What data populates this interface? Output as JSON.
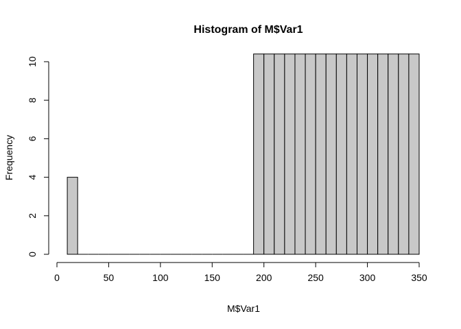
{
  "chart_data": {
    "type": "bar",
    "title": "Histogram of M$Var1",
    "xlabel": "M$Var1",
    "ylabel": "Frequency",
    "bar_fill": "#c8c8c8",
    "bar_stroke": "#000000",
    "xlim": [
      0,
      350
    ],
    "ylim": [
      0,
      10
    ],
    "xticks": [
      0,
      50,
      100,
      150,
      200,
      250,
      300,
      350
    ],
    "yticks": [
      0,
      2,
      4,
      6,
      8,
      10
    ],
    "bins": [
      {
        "start": 10,
        "end": 20,
        "count": 4
      },
      {
        "start": 20,
        "end": 30,
        "count": 0
      },
      {
        "start": 30,
        "end": 40,
        "count": 0
      },
      {
        "start": 40,
        "end": 50,
        "count": 0
      },
      {
        "start": 50,
        "end": 60,
        "count": 0
      },
      {
        "start": 60,
        "end": 70,
        "count": 0
      },
      {
        "start": 70,
        "end": 80,
        "count": 0
      },
      {
        "start": 80,
        "end": 90,
        "count": 0
      },
      {
        "start": 90,
        "end": 100,
        "count": 0
      },
      {
        "start": 100,
        "end": 110,
        "count": 0
      },
      {
        "start": 110,
        "end": 120,
        "count": 0
      },
      {
        "start": 120,
        "end": 130,
        "count": 0
      },
      {
        "start": 130,
        "end": 140,
        "count": 0
      },
      {
        "start": 140,
        "end": 150,
        "count": 0
      },
      {
        "start": 150,
        "end": 160,
        "count": 0
      },
      {
        "start": 160,
        "end": 170,
        "count": 0
      },
      {
        "start": 170,
        "end": 180,
        "count": 0
      },
      {
        "start": 180,
        "end": 190,
        "count": 0
      },
      {
        "start": 190,
        "end": 200,
        "count": 10.4
      },
      {
        "start": 200,
        "end": 210,
        "count": 10.4
      },
      {
        "start": 210,
        "end": 220,
        "count": 10.4
      },
      {
        "start": 220,
        "end": 230,
        "count": 10.4
      },
      {
        "start": 230,
        "end": 240,
        "count": 10.4
      },
      {
        "start": 240,
        "end": 250,
        "count": 10.4
      },
      {
        "start": 250,
        "end": 260,
        "count": 10.4
      },
      {
        "start": 260,
        "end": 270,
        "count": 10.4
      },
      {
        "start": 270,
        "end": 280,
        "count": 10.4
      },
      {
        "start": 280,
        "end": 290,
        "count": 10.4
      },
      {
        "start": 290,
        "end": 300,
        "count": 10.4
      },
      {
        "start": 300,
        "end": 310,
        "count": 10.4
      },
      {
        "start": 310,
        "end": 320,
        "count": 10.4
      },
      {
        "start": 320,
        "end": 330,
        "count": 10.4
      },
      {
        "start": 330,
        "end": 340,
        "count": 10.4
      },
      {
        "start": 340,
        "end": 350,
        "count": 10.4
      }
    ]
  }
}
